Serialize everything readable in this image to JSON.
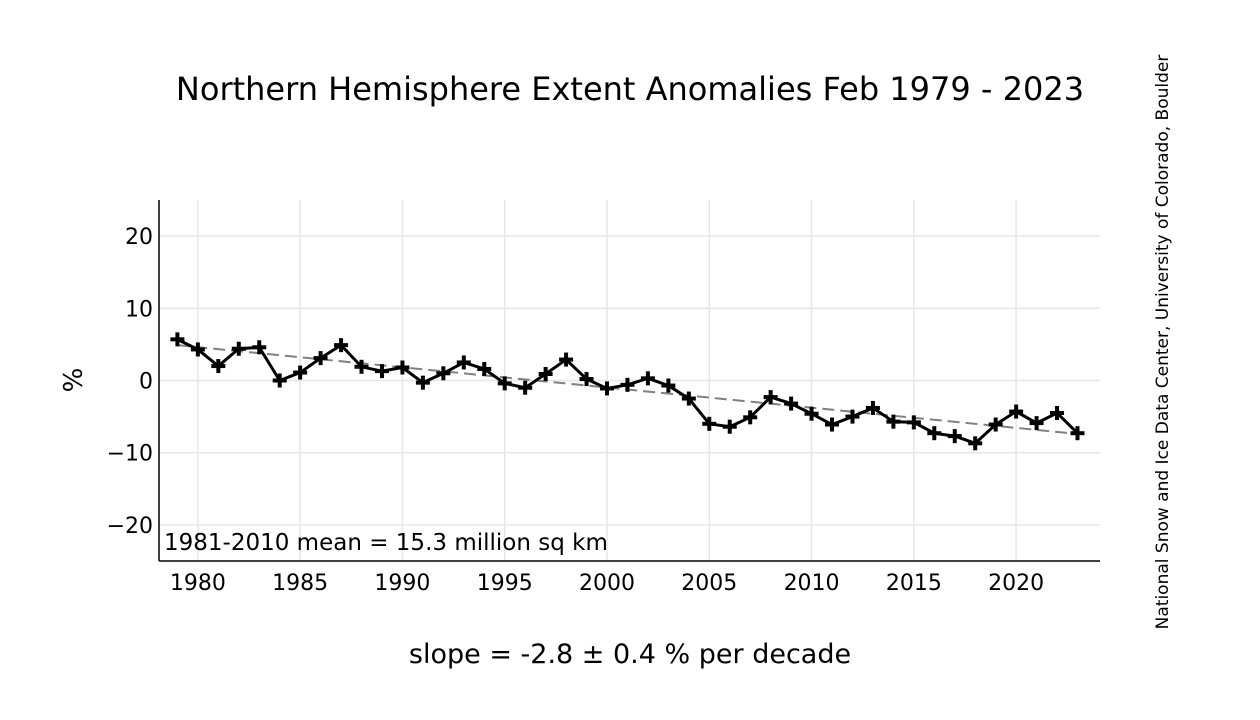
{
  "chart_data": {
    "type": "line",
    "title": "Northern Hemisphere Extent Anomalies Feb 1979 - 2023",
    "ylabel": "%",
    "xlabel": "",
    "annotation": "1981-2010 mean = 15.3 million sq km",
    "slope_text": "slope = -2.8 ± 0.4 % per decade",
    "credit": "National Snow and Ice Data Center, University of Colorado, Boulder",
    "xlim": [
      1978.1,
      2024.1
    ],
    "ylim": [
      -25,
      25
    ],
    "x_ticks": [
      1980,
      1985,
      1990,
      1995,
      2000,
      2005,
      2010,
      2015,
      2020
    ],
    "y_ticks": [
      20,
      10,
      0,
      -10,
      -20
    ],
    "y_tick_labels": [
      "20",
      "10",
      "0",
      "−10",
      "−20"
    ],
    "grid": true,
    "series": [
      {
        "x": [
          1979,
          1980,
          1981,
          1982,
          1983,
          1984,
          1985,
          1986,
          1987,
          1988,
          1989,
          1990,
          1991,
          1992,
          1993,
          1994,
          1995,
          1996,
          1997,
          1998,
          1999,
          2000,
          2001,
          2002,
          2003,
          2004,
          2005,
          2006,
          2007,
          2008,
          2009,
          2010,
          2011,
          2012,
          2013,
          2014,
          2015,
          2016,
          2017,
          2018,
          2019,
          2020,
          2021,
          2022,
          2023
        ],
        "values": [
          5.7,
          4.3,
          2.0,
          4.4,
          4.6,
          0.0,
          1.1,
          3.1,
          4.9,
          1.9,
          1.3,
          1.8,
          -0.3,
          1.0,
          2.5,
          1.6,
          -0.4,
          -1.0,
          0.9,
          2.9,
          0.2,
          -1.1,
          -0.6,
          0.3,
          -0.7,
          -2.5,
          -6.0,
          -6.4,
          -5.1,
          -2.3,
          -3.2,
          -4.6,
          -6.1,
          -5.0,
          -3.8,
          -5.7,
          -5.8,
          -7.3,
          -7.7,
          -8.7,
          -6.1,
          -4.3,
          -5.9,
          -4.5,
          -7.3
        ],
        "color": "#000000",
        "marker": "plus"
      }
    ],
    "trend": {
      "start": [
        1979,
        4.9
      ],
      "end": [
        2023,
        -7.4
      ],
      "color": "#808080",
      "style": "dashed"
    }
  }
}
